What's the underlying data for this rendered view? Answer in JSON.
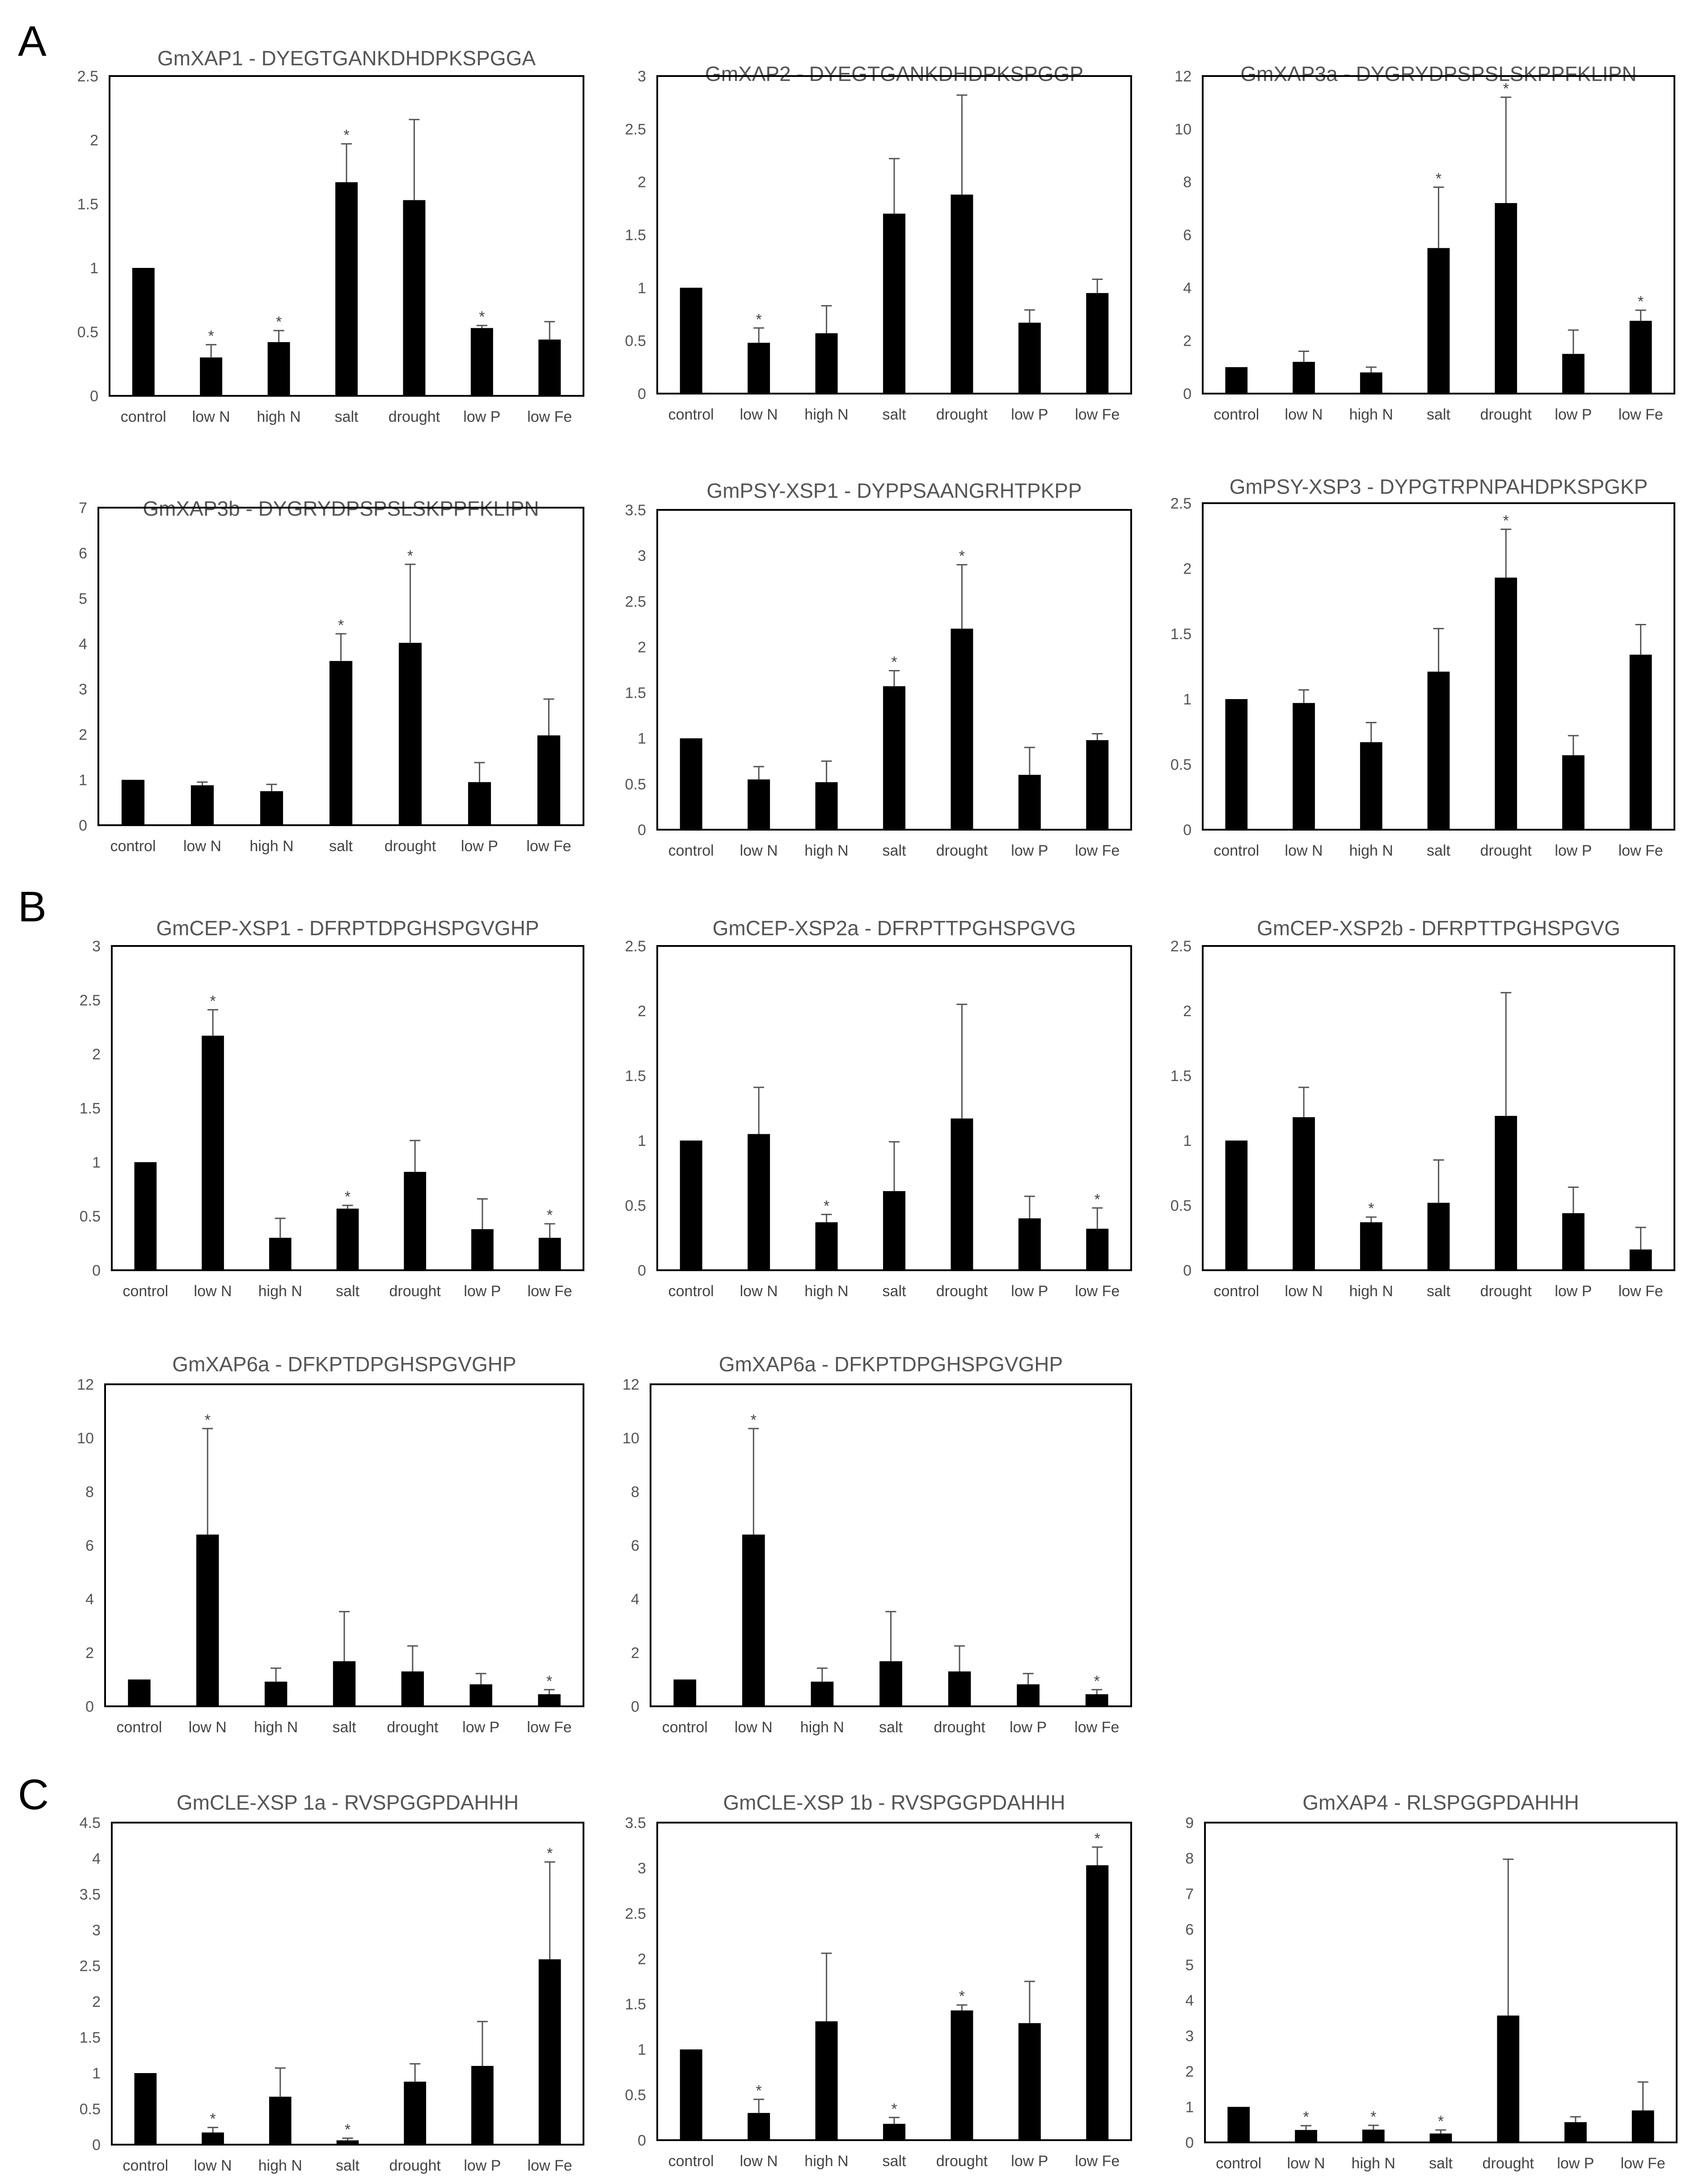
{
  "panels": [
    "A",
    "B",
    "C"
  ],
  "chart_data": [
    {
      "type": "bar",
      "panel": "A",
      "title": "GmXAP1 - DYEGTGANKDHDPKSPGGA",
      "categories": [
        "control",
        "low N",
        "high N",
        "salt",
        "drought",
        "low P",
        "low Fe"
      ],
      "values": [
        1.0,
        0.3,
        0.42,
        1.67,
        1.53,
        0.53,
        0.44
      ],
      "errors": [
        0,
        0.1,
        0.09,
        0.3,
        0.63,
        0.02,
        0.14
      ],
      "significant": [
        false,
        true,
        true,
        true,
        false,
        true,
        false
      ],
      "ylim": [
        0,
        2.5
      ],
      "yticks": [
        "0",
        "0.5",
        "1",
        "1.5",
        "2",
        "2.5"
      ],
      "xlabel": "",
      "ylabel": ""
    },
    {
      "type": "bar",
      "panel": "A",
      "title": "GmXAP2 - DYEGTGANKDHDPKSPGGP",
      "categories": [
        "control",
        "low N",
        "high N",
        "salt",
        "drought",
        "low P",
        "low Fe"
      ],
      "values": [
        1.0,
        0.48,
        0.57,
        1.7,
        1.88,
        0.67,
        0.95
      ],
      "errors": [
        0,
        0.14,
        0.26,
        0.52,
        0.94,
        0.12,
        0.13
      ],
      "significant": [
        false,
        true,
        false,
        false,
        false,
        false,
        false
      ],
      "ylim": [
        0,
        3
      ],
      "yticks": [
        "0",
        "0.5",
        "1",
        "1.5",
        "2",
        "2.5",
        "3"
      ],
      "xlabel": "",
      "ylabel": ""
    },
    {
      "type": "bar",
      "panel": "A",
      "title": "GmXAP3a - DYGRYDPSPSLSKPPFKLIPN",
      "categories": [
        "control",
        "low N",
        "high N",
        "salt",
        "drought",
        "low P",
        "low Fe"
      ],
      "values": [
        1.0,
        1.2,
        0.8,
        5.5,
        7.2,
        1.5,
        2.75
      ],
      "errors": [
        0,
        0.4,
        0.2,
        2.3,
        4.0,
        0.9,
        0.4
      ],
      "significant": [
        false,
        false,
        false,
        true,
        true,
        false,
        true
      ],
      "ylim": [
        0,
        12
      ],
      "yticks": [
        "0",
        "2",
        "4",
        "6",
        "8",
        "10",
        "12"
      ],
      "xlabel": "",
      "ylabel": ""
    },
    {
      "type": "bar",
      "panel": "A",
      "title": "GmXAP3b - DYGRYDPSPSLSKPPFKLIPN",
      "categories": [
        "control",
        "low N",
        "high N",
        "salt",
        "drought",
        "low P",
        "low Fe"
      ],
      "values": [
        1.0,
        0.88,
        0.75,
        3.62,
        4.02,
        0.95,
        1.98
      ],
      "errors": [
        0,
        0.07,
        0.15,
        0.6,
        1.73,
        0.43,
        0.8
      ],
      "significant": [
        false,
        false,
        false,
        true,
        true,
        false,
        false
      ],
      "ylim": [
        0,
        7
      ],
      "yticks": [
        "0",
        "1",
        "2",
        "3",
        "4",
        "5",
        "6",
        "7"
      ],
      "xlabel": "",
      "ylabel": ""
    },
    {
      "type": "bar",
      "panel": "A",
      "title": "GmPSY-XSP1 - DYPPSAANGRHTPKPP",
      "categories": [
        "control",
        "low N",
        "high N",
        "salt",
        "drought",
        "low P",
        "low Fe"
      ],
      "values": [
        1.0,
        0.55,
        0.52,
        1.57,
        2.2,
        0.6,
        0.98
      ],
      "errors": [
        0,
        0.14,
        0.23,
        0.17,
        0.7,
        0.3,
        0.07
      ],
      "significant": [
        false,
        false,
        false,
        true,
        true,
        false,
        false
      ],
      "ylim": [
        0,
        3.5
      ],
      "yticks": [
        "0",
        "0.5",
        "1",
        "1.5",
        "2",
        "2.5",
        "3",
        "3.5"
      ],
      "xlabel": "",
      "ylabel": ""
    },
    {
      "type": "bar",
      "panel": "A",
      "title": "GmPSY-XSP3 - DYPGTRPNPAHDPKSPGKP",
      "categories": [
        "control",
        "low N",
        "high N",
        "salt",
        "drought",
        "low P",
        "low Fe"
      ],
      "values": [
        1.0,
        0.97,
        0.67,
        1.21,
        1.93,
        0.57,
        1.34
      ],
      "errors": [
        0,
        0.1,
        0.15,
        0.33,
        0.37,
        0.15,
        0.23
      ],
      "significant": [
        false,
        false,
        false,
        false,
        true,
        false,
        false
      ],
      "ylim": [
        0,
        2.5
      ],
      "yticks": [
        "0",
        "0.5",
        "1",
        "1.5",
        "2",
        "2.5"
      ],
      "xlabel": "",
      "ylabel": ""
    },
    {
      "type": "bar",
      "panel": "B",
      "title": "GmCEP-XSP1 - DFRPTDPGHSPGVGHP",
      "categories": [
        "control",
        "low N",
        "high N",
        "salt",
        "drought",
        "low P",
        "low Fe"
      ],
      "values": [
        1.0,
        2.17,
        0.3,
        0.57,
        0.91,
        0.38,
        0.3
      ],
      "errors": [
        0,
        0.24,
        0.18,
        0.03,
        0.29,
        0.28,
        0.13
      ],
      "significant": [
        false,
        true,
        false,
        true,
        false,
        false,
        true
      ],
      "ylim": [
        0,
        3
      ],
      "yticks": [
        "0",
        "0.5",
        "1",
        "1.5",
        "2",
        "2.5",
        "3"
      ],
      "xlabel": "",
      "ylabel": ""
    },
    {
      "type": "bar",
      "panel": "B",
      "title": "GmCEP-XSP2a - DFRPTTPGHSPGVG",
      "categories": [
        "control",
        "low N",
        "high N",
        "salt",
        "drought",
        "low P",
        "low Fe"
      ],
      "values": [
        1.0,
        1.05,
        0.37,
        0.61,
        1.17,
        0.4,
        0.32
      ],
      "errors": [
        0,
        0.36,
        0.06,
        0.38,
        0.88,
        0.17,
        0.16
      ],
      "significant": [
        false,
        false,
        true,
        false,
        false,
        false,
        true
      ],
      "ylim": [
        0,
        2.5
      ],
      "yticks": [
        "0",
        "0.5",
        "1",
        "1.5",
        "2",
        "2.5"
      ],
      "xlabel": "",
      "ylabel": ""
    },
    {
      "type": "bar",
      "panel": "B",
      "title": "GmCEP-XSP2b - DFRPTTPGHSPGVG",
      "categories": [
        "control",
        "low N",
        "high N",
        "salt",
        "drought",
        "low P",
        "low Fe"
      ],
      "values": [
        1.0,
        1.18,
        0.37,
        0.52,
        1.19,
        0.44,
        0.16
      ],
      "errors": [
        0,
        0.23,
        0.04,
        0.33,
        0.95,
        0.2,
        0.17
      ],
      "significant": [
        false,
        false,
        true,
        false,
        false,
        false,
        false
      ],
      "ylim": [
        0,
        2.5
      ],
      "yticks": [
        "0",
        "0.5",
        "1",
        "1.5",
        "2",
        "2.5"
      ],
      "xlabel": "",
      "ylabel": ""
    },
    {
      "type": "bar",
      "panel": "B",
      "title": "GmXAP6a - DFKPTDPGHSPGVGHP",
      "categories": [
        "control",
        "low N",
        "high N",
        "salt",
        "drought",
        "low P",
        "low Fe"
      ],
      "values": [
        1.0,
        6.4,
        0.92,
        1.68,
        1.3,
        0.82,
        0.45
      ],
      "errors": [
        0,
        3.95,
        0.5,
        1.85,
        0.95,
        0.4,
        0.17
      ],
      "significant": [
        false,
        true,
        false,
        false,
        false,
        false,
        true
      ],
      "ylim": [
        0,
        12
      ],
      "yticks": [
        "0",
        "2",
        "4",
        "6",
        "8",
        "10",
        "12"
      ],
      "xlabel": "",
      "ylabel": ""
    },
    {
      "type": "bar",
      "panel": "B",
      "title": "GmXAP6a - DFKPTDPGHSPGVGHP",
      "categories": [
        "control",
        "low N",
        "high N",
        "salt",
        "drought",
        "low P",
        "low Fe"
      ],
      "values": [
        1.0,
        6.4,
        0.92,
        1.68,
        1.3,
        0.82,
        0.45
      ],
      "errors": [
        0,
        3.95,
        0.5,
        1.85,
        0.95,
        0.4,
        0.17
      ],
      "significant": [
        false,
        true,
        false,
        false,
        false,
        false,
        true
      ],
      "ylim": [
        0,
        12
      ],
      "yticks": [
        "0",
        "2",
        "4",
        "6",
        "8",
        "10",
        "12"
      ],
      "xlabel": "",
      "ylabel": ""
    },
    {
      "type": "bar",
      "panel": "C",
      "title": "GmCLE-XSP 1a - RVSPGGPDAHHH",
      "categories": [
        "control",
        "low N",
        "high N",
        "salt",
        "drought",
        "low P",
        "low Fe"
      ],
      "values": [
        1.0,
        0.17,
        0.67,
        0.06,
        0.88,
        1.1,
        2.59
      ],
      "errors": [
        0,
        0.07,
        0.4,
        0.03,
        0.25,
        0.62,
        1.36
      ],
      "significant": [
        false,
        true,
        false,
        true,
        false,
        false,
        true
      ],
      "ylim": [
        0,
        4.5
      ],
      "yticks": [
        "0",
        "0.5",
        "1",
        "1.5",
        "2",
        "2.5",
        "3",
        "3.5",
        "4",
        "4.5"
      ],
      "xlabel": "",
      "ylabel": ""
    },
    {
      "type": "bar",
      "panel": "C",
      "title": "GmCLE-XSP 1b - RVSPGGPDAHHH",
      "categories": [
        "control",
        "low N",
        "high N",
        "salt",
        "drought",
        "low P",
        "low Fe"
      ],
      "values": [
        1.0,
        0.3,
        1.31,
        0.18,
        1.43,
        1.29,
        3.03
      ],
      "errors": [
        0,
        0.15,
        0.75,
        0.07,
        0.06,
        0.46,
        0.2
      ],
      "significant": [
        false,
        true,
        false,
        true,
        true,
        false,
        true
      ],
      "ylim": [
        0,
        3.5
      ],
      "yticks": [
        "0",
        "0.5",
        "1",
        "1.5",
        "2",
        "2.5",
        "3",
        "3.5"
      ],
      "xlabel": "",
      "ylabel": ""
    },
    {
      "type": "bar",
      "panel": "C",
      "title": "GmXAP4 - RLSPGGPDAHHH",
      "categories": [
        "control",
        "low N",
        "high N",
        "salt",
        "drought",
        "low P",
        "low Fe"
      ],
      "values": [
        1.0,
        0.35,
        0.36,
        0.25,
        3.57,
        0.57,
        0.9
      ],
      "errors": [
        0,
        0.12,
        0.12,
        0.1,
        4.4,
        0.15,
        0.8
      ],
      "significant": [
        false,
        true,
        true,
        true,
        false,
        false,
        false
      ],
      "ylim": [
        0,
        9
      ],
      "yticks": [
        "0",
        "1",
        "2",
        "3",
        "4",
        "5",
        "6",
        "7",
        "8",
        "9"
      ],
      "xlabel": "",
      "ylabel": ""
    }
  ]
}
